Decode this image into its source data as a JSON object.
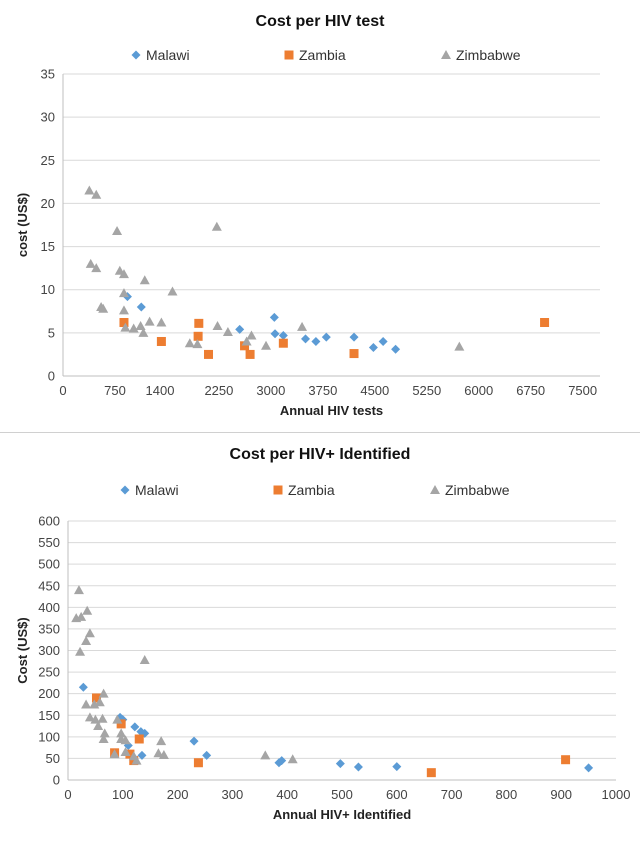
{
  "colors": {
    "malawi": "#5B9BD5",
    "zambia": "#ED7D31",
    "zimbabwe": "#A5A5A5",
    "grid": "#D9D9D9"
  },
  "chart_data": [
    {
      "type": "scatter",
      "title": "Cost per HIV test",
      "xlabel": "Annual HIV tests",
      "ylabel": "cost (US$)",
      "xlim": [
        0,
        7750
      ],
      "ylim": [
        0,
        35
      ],
      "xticks": [
        0,
        750,
        1400,
        2250,
        3000,
        3750,
        4500,
        5250,
        6000,
        6750,
        7500
      ],
      "xtick_labels": [
        "0",
        "750",
        "1400",
        "2250",
        "3000",
        "3750",
        "4500",
        "5250",
        "6000",
        "6750",
        "7500"
      ],
      "yticks": [
        0,
        5,
        10,
        15,
        20,
        25,
        30,
        35
      ],
      "ytick_labels": [
        "0",
        "5",
        "10",
        "15",
        "20",
        "25",
        "30",
        "35"
      ],
      "grid": "horizontal",
      "legend": "top",
      "series": [
        {
          "name": "Malawi",
          "marker": "diamond",
          "color": "#5B9BD5",
          "points": [
            [
              930,
              9.2
            ],
            [
              1130,
              8.0
            ],
            [
              2550,
              5.4
            ],
            [
              3050,
              6.8
            ],
            [
              3060,
              4.9
            ],
            [
              3180,
              4.7
            ],
            [
              3500,
              4.3
            ],
            [
              3650,
              4.0
            ],
            [
              3800,
              4.5
            ],
            [
              4200,
              4.5
            ],
            [
              4480,
              3.3
            ],
            [
              4620,
              4.0
            ],
            [
              4800,
              3.1
            ]
          ]
        },
        {
          "name": "Zambia",
          "marker": "square",
          "color": "#ED7D31",
          "points": [
            [
              880,
              6.2
            ],
            [
              1420,
              4.0
            ],
            [
              1960,
              6.1
            ],
            [
              1950,
              4.6
            ],
            [
              2100,
              2.5
            ],
            [
              2620,
              3.5
            ],
            [
              2700,
              2.5
            ],
            [
              3180,
              3.8
            ],
            [
              4200,
              2.6
            ],
            [
              6950,
              6.2
            ]
          ]
        },
        {
          "name": "Zimbabwe",
          "marker": "triangle",
          "color": "#A5A5A5",
          "points": [
            [
              380,
              21.5
            ],
            [
              480,
              21.0
            ],
            [
              780,
              16.8
            ],
            [
              2220,
              17.3
            ],
            [
              400,
              13.0
            ],
            [
              480,
              12.5
            ],
            [
              820,
              12.2
            ],
            [
              880,
              11.8
            ],
            [
              1180,
              11.1
            ],
            [
              1580,
              9.8
            ],
            [
              880,
              9.6
            ],
            [
              550,
              8.0
            ],
            [
              580,
              7.8
            ],
            [
              880,
              7.6
            ],
            [
              900,
              5.6
            ],
            [
              1020,
              5.5
            ],
            [
              1120,
              5.8
            ],
            [
              1250,
              6.3
            ],
            [
              1420,
              6.2
            ],
            [
              1160,
              5.0
            ],
            [
              1830,
              3.8
            ],
            [
              1940,
              3.7
            ],
            [
              2230,
              5.8
            ],
            [
              2380,
              5.1
            ],
            [
              2650,
              4.0
            ],
            [
              2720,
              4.7
            ],
            [
              2930,
              3.5
            ],
            [
              3450,
              5.7
            ],
            [
              5720,
              3.4
            ]
          ]
        }
      ]
    },
    {
      "type": "scatter",
      "title": "Cost per HIV+ Identified",
      "xlabel": "Annual HIV+ Identified",
      "ylabel": "Cost (US$)",
      "xlim": [
        0,
        1000
      ],
      "ylim": [
        0,
        600
      ],
      "xticks": [
        0,
        100,
        200,
        300,
        400,
        500,
        600,
        700,
        800,
        900,
        1000
      ],
      "xtick_labels": [
        "0",
        "100",
        "200",
        "300",
        "400",
        "500",
        "600",
        "700",
        "800",
        "900",
        "1000"
      ],
      "yticks": [
        0,
        50,
        100,
        150,
        200,
        250,
        300,
        350,
        400,
        450,
        500,
        550,
        600
      ],
      "ytick_labels": [
        "0",
        "50",
        "100",
        "150",
        "200",
        "250",
        "300",
        "350",
        "400",
        "450",
        "500",
        "550",
        "600"
      ],
      "grid": "horizontal",
      "legend": "top",
      "series": [
        {
          "name": "Malawi",
          "marker": "diamond",
          "color": "#5B9BD5",
          "points": [
            [
              28,
              215
            ],
            [
              95,
              145
            ],
            [
              100,
              140
            ],
            [
              110,
              80
            ],
            [
              122,
              123
            ],
            [
              133,
              112
            ],
            [
              140,
              108
            ],
            [
              135,
              57
            ],
            [
              230,
              90
            ],
            [
              253,
              57
            ],
            [
              385,
              40
            ],
            [
              390,
              45
            ],
            [
              497,
              38
            ],
            [
              530,
              30
            ],
            [
              600,
              31
            ],
            [
              950,
              28
            ]
          ]
        },
        {
          "name": "Zambia",
          "marker": "square",
          "color": "#ED7D31",
          "points": [
            [
              52,
              190
            ],
            [
              85,
              63
            ],
            [
              97,
              130
            ],
            [
              113,
              60
            ],
            [
              120,
              45
            ],
            [
              130,
              95
            ],
            [
              238,
              40
            ],
            [
              663,
              17
            ],
            [
              908,
              47
            ]
          ]
        },
        {
          "name": "Zimbabwe",
          "marker": "triangle",
          "color": "#A5A5A5",
          "points": [
            [
              20,
              440
            ],
            [
              15,
              375
            ],
            [
              24,
              378
            ],
            [
              35,
              392
            ],
            [
              40,
              340
            ],
            [
              33,
              322
            ],
            [
              22,
              297
            ],
            [
              140,
              278
            ],
            [
              65,
              200
            ],
            [
              33,
              175
            ],
            [
              48,
              175
            ],
            [
              58,
              180
            ],
            [
              40,
              145
            ],
            [
              50,
              140
            ],
            [
              63,
              142
            ],
            [
              55,
              125
            ],
            [
              67,
              108
            ],
            [
              65,
              95
            ],
            [
              90,
              140
            ],
            [
              97,
              108
            ],
            [
              97,
              95
            ],
            [
              105,
              92
            ],
            [
              85,
              60
            ],
            [
              120,
              55
            ],
            [
              125,
              45
            ],
            [
              105,
              65
            ],
            [
              165,
              62
            ],
            [
              170,
              90
            ],
            [
              175,
              58
            ],
            [
              360,
              57
            ],
            [
              410,
              48
            ]
          ]
        }
      ]
    }
  ]
}
